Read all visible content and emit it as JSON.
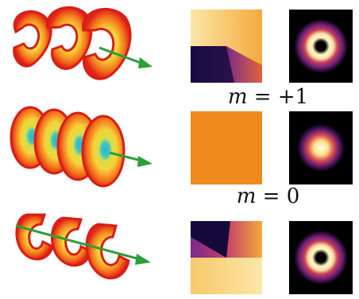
{
  "rows": [
    {
      "id": "m-plus-1",
      "label_var": "m",
      "label_rel": "=",
      "label_val": "+1",
      "phase": "vortex",
      "intensity": "ring",
      "rotation": "clockwise"
    },
    {
      "id": "m-0",
      "label_var": "m",
      "label_rel": "=",
      "label_val": "0",
      "phase": "uniform",
      "intensity": "spot",
      "rotation": "none"
    },
    {
      "id": "m-minus-1",
      "label_var": "",
      "label_rel": "",
      "label_val": "",
      "phase": "vortex",
      "intensity": "ring",
      "rotation": "counterclockwise"
    }
  ],
  "colors": {
    "wave_outer": "#e0201a",
    "wave_mid": "#f47a1c",
    "wave_inner": "#f6d23a",
    "wave_center": "#f2f06a",
    "plane_center": "#2ab6c8",
    "arrow": "#2f9e3a",
    "phase_uniform": "#f08a1c",
    "phase_dark": "#140a3a",
    "phase_purple": "#7a2a8c",
    "phase_light": "#fbe7a8",
    "beam_bg": "#000000",
    "beam_bright": "#fffde8",
    "beam_purple": "#6b1f7a"
  }
}
